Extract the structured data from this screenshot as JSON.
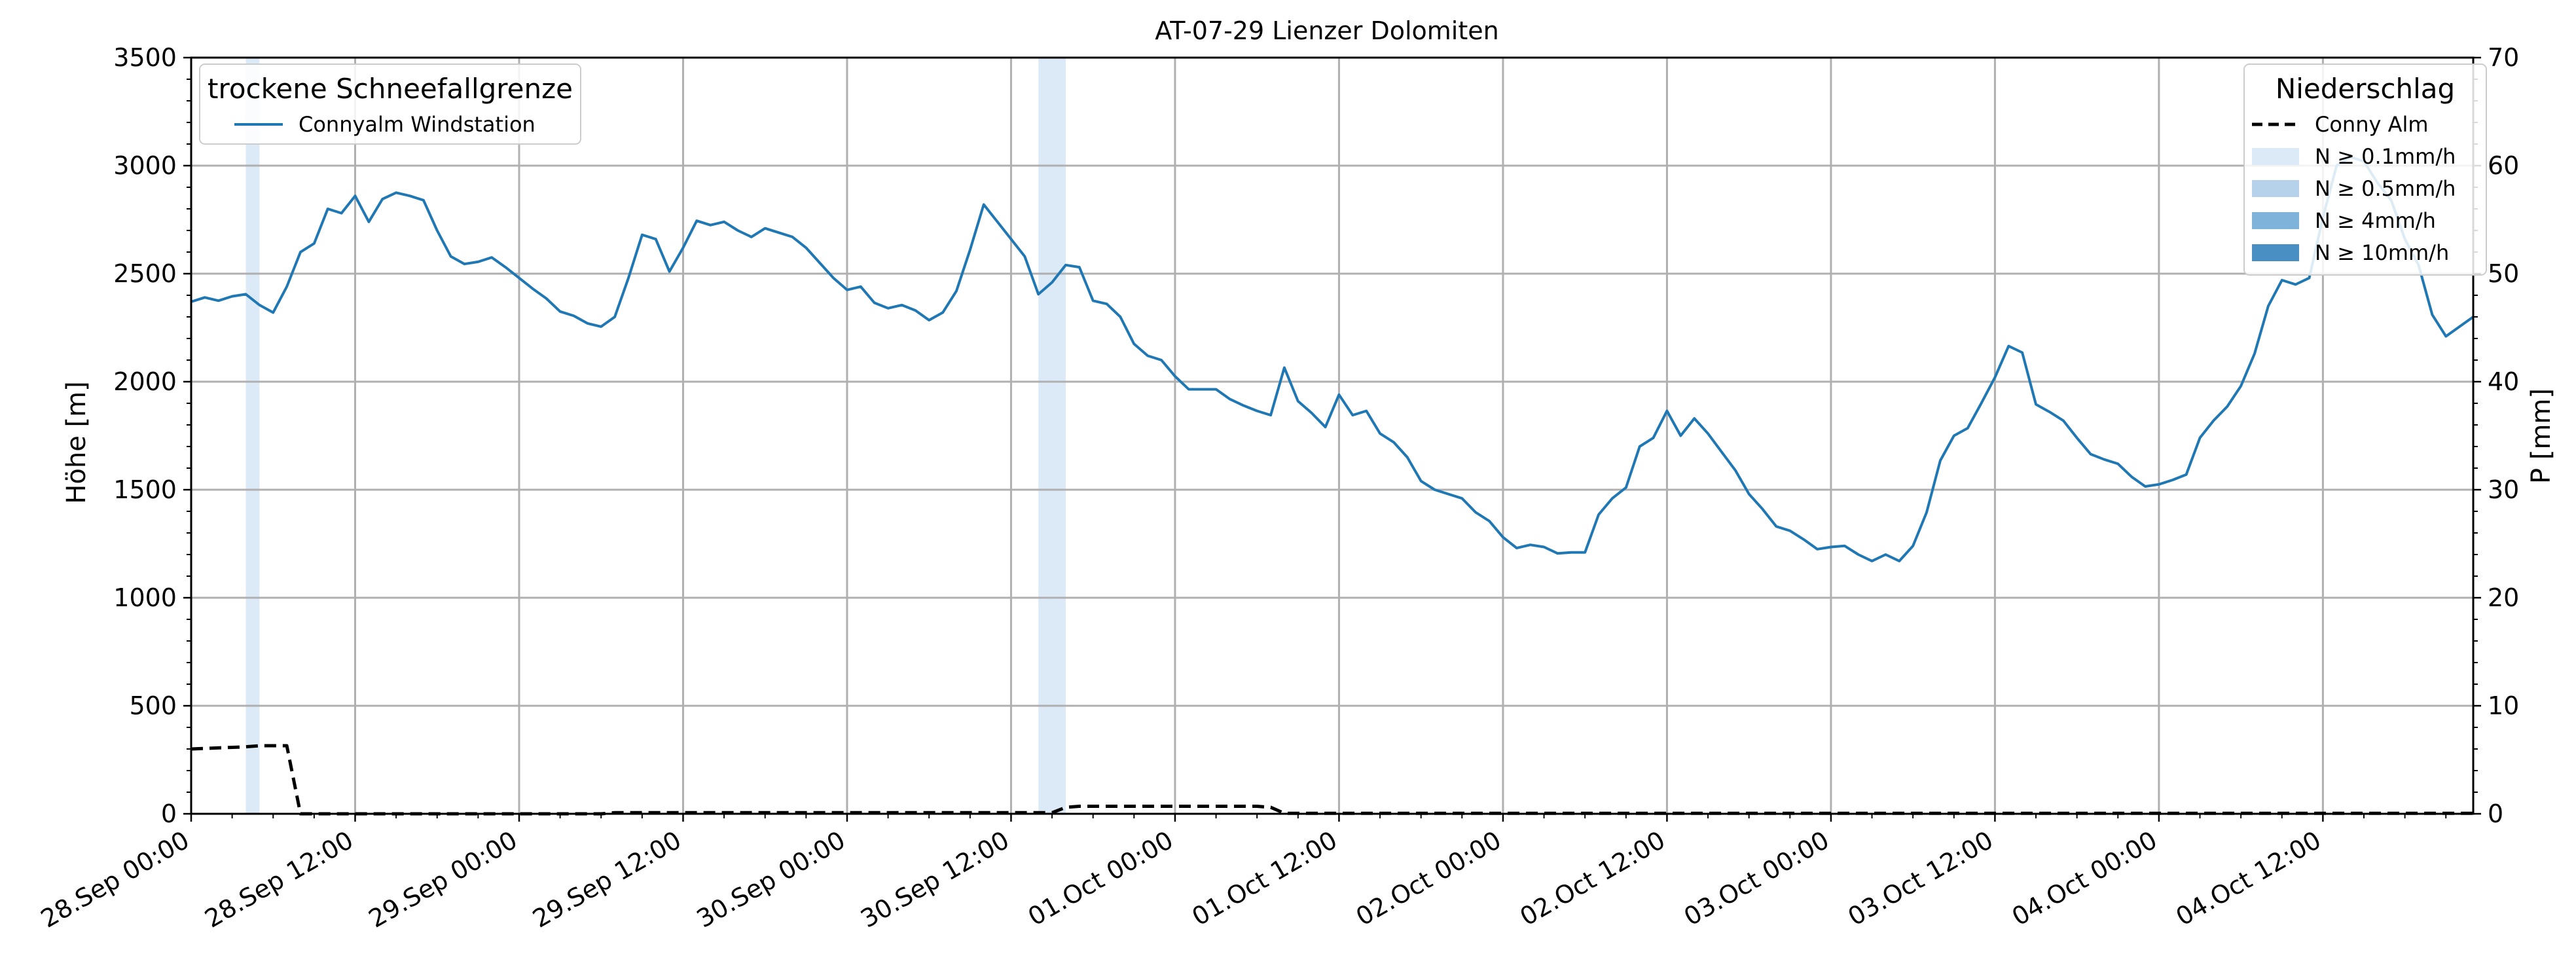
{
  "chart_data": {
    "type": "line",
    "title": "AT-07-29 Lienzer Dolomiten",
    "ylabel_left": "Höhe [m]",
    "ylabel_right": "P [mm]",
    "x_ticks": [
      "28.Sep 00:00",
      "28.Sep 12:00",
      "29.Sep 00:00",
      "29.Sep 12:00",
      "30.Sep 00:00",
      "30.Sep 12:00",
      "01.Oct 00:00",
      "01.Oct 12:00",
      "02.Oct 00:00",
      "02.Oct 12:00",
      "03.Oct 00:00",
      "03.Oct 12:00",
      "04.Oct 00:00",
      "04.Oct 12:00"
    ],
    "x_start": "2023-09-28T00:00",
    "x_hours_range": [
      0,
      167
    ],
    "y_left_range": [
      0,
      3500
    ],
    "y_left_ticks": [
      "0",
      "500",
      "1000",
      "1500",
      "2000",
      "2500",
      "3000",
      "3500"
    ],
    "y_right_range": [
      0,
      70
    ],
    "y_right_ticks": [
      "0",
      "10",
      "20",
      "30",
      "40",
      "50",
      "60",
      "70"
    ],
    "grid": true,
    "legend_snow": {
      "title": "trockene Schneefallgrenze",
      "position": "top-left",
      "entries": [
        {
          "label": "Connyalm Windstation",
          "color": "#1f77b4"
        }
      ]
    },
    "legend_precip": {
      "title": "Niederschlag",
      "position": "top-right",
      "entries": [
        {
          "label": "Conny Alm",
          "style": "dashed",
          "color": "#000000"
        },
        {
          "label": "N ≥ 0.1mm/h",
          "color": "#dce9f6"
        },
        {
          "label": "N ≥ 0.5mm/h",
          "color": "#b6d2ea"
        },
        {
          "label": "N ≥ 4mm/h",
          "color": "#7fb3da"
        },
        {
          "label": "N ≥ 10mm/h",
          "color": "#4a8fc4"
        }
      ]
    },
    "precip_bands": [
      {
        "x0": 4,
        "x1": 5,
        "color": "#dce9f6"
      },
      {
        "x0": 62,
        "x1": 63,
        "color": "#dce9f6"
      },
      {
        "x0": 63,
        "x1": 64,
        "color": "#dce9f6"
      }
    ],
    "series": [
      {
        "name": "Connyalm Windstation",
        "axis": "left",
        "color": "#1f77b4",
        "x": [
          0,
          1,
          2,
          3,
          4,
          5,
          6,
          7,
          8,
          9,
          10,
          11,
          12,
          13,
          14,
          15,
          16,
          17,
          18,
          19,
          20,
          21,
          22,
          23,
          24,
          25,
          26,
          27,
          28,
          29,
          30,
          31,
          32,
          33,
          34,
          35,
          36,
          37,
          38,
          39,
          40,
          41,
          42,
          43,
          44,
          45,
          46,
          47,
          48,
          49,
          50,
          51,
          52,
          53,
          54,
          55,
          56,
          57,
          58,
          59,
          60,
          61,
          62,
          63,
          64,
          65,
          66,
          67,
          68,
          69,
          70,
          71,
          72,
          73,
          74,
          75,
          76,
          77,
          78,
          79,
          80,
          81,
          82,
          83,
          84,
          85,
          86,
          87,
          88,
          89,
          90,
          91,
          92,
          93,
          94,
          95,
          96,
          97,
          98,
          99,
          100,
          101,
          102,
          103,
          104,
          105,
          106,
          107,
          108,
          109,
          110,
          111,
          112,
          113,
          114,
          115,
          116,
          117,
          118,
          119,
          120,
          121,
          122,
          123,
          124,
          125,
          126,
          127,
          128,
          129,
          130,
          131,
          132,
          133,
          134,
          135,
          136,
          137,
          138,
          139,
          140,
          141,
          142,
          143,
          144,
          145,
          146,
          147,
          148,
          149,
          150,
          151,
          152,
          153,
          154,
          155,
          156,
          157,
          158,
          159,
          160,
          161,
          162,
          163,
          164,
          165,
          166,
          167
        ],
        "values": [
          2370,
          2390,
          2375,
          2395,
          2405,
          2355,
          2320,
          2440,
          2600,
          2640,
          2800,
          2780,
          2860,
          2740,
          2845,
          2875,
          2860,
          2840,
          2700,
          2580,
          2545,
          2555,
          2575,
          2530,
          2480,
          2430,
          2385,
          2325,
          2305,
          2270,
          2255,
          2300,
          2480,
          2680,
          2660,
          2510,
          2620,
          2745,
          2725,
          2740,
          2700,
          2670,
          2710,
          2690,
          2670,
          2620,
          2550,
          2480,
          2425,
          2440,
          2365,
          2340,
          2355,
          2330,
          2285,
          2320,
          2420,
          2610,
          2820,
          2740,
          2660,
          2580,
          2405,
          2460,
          2540,
          2530,
          2375,
          2360,
          2300,
          2175,
          2120,
          2100,
          2025,
          1965,
          1965,
          1965,
          1920,
          1890,
          1865,
          1845,
          2065,
          1910,
          1855,
          1790,
          1940,
          1845,
          1865,
          1760,
          1720,
          1650,
          1540,
          1500,
          1480,
          1460,
          1395,
          1355,
          1280,
          1230,
          1245,
          1235,
          1205,
          1210,
          1210,
          1385,
          1460,
          1510,
          1700,
          1740,
          1865,
          1750,
          1830,
          1760,
          1675,
          1590,
          1480,
          1410,
          1330,
          1310,
          1270,
          1225,
          1235,
          1240,
          1200,
          1170,
          1200,
          1170,
          1240,
          1395,
          1635,
          1750,
          1785,
          1900,
          2020,
          2165,
          2135,
          1895,
          1860,
          1820,
          1740,
          1665,
          1640,
          1620,
          1560,
          1515,
          1525,
          1545,
          1570,
          1740,
          1820,
          1885,
          1980,
          2130,
          2350,
          2470,
          2450,
          2480,
          2760,
          3000,
          3040,
          3020,
          2920,
          2840,
          2660,
          2540,
          2310,
          2210,
          2255,
          2300
        ]
      },
      {
        "name": "Conny Alm",
        "axis": "right",
        "color": "#000000",
        "style": "dashed",
        "x": [
          0,
          4,
          5,
          6,
          7,
          8,
          30,
          31,
          63,
          64,
          65,
          66,
          67,
          68,
          69,
          70,
          71,
          72,
          73,
          74,
          75,
          76,
          77,
          78,
          79,
          80,
          81,
          167
        ],
        "values": [
          6,
          6.2,
          6.3,
          6.3,
          6.3,
          0,
          0,
          0.1,
          0.1,
          0.6,
          0.7,
          0.7,
          0.7,
          0.7,
          0.7,
          0.7,
          0.7,
          0.7,
          0.7,
          0.7,
          0.7,
          0.7,
          0.7,
          0.7,
          0.6,
          0.05,
          0.05,
          0.05
        ]
      }
    ]
  }
}
